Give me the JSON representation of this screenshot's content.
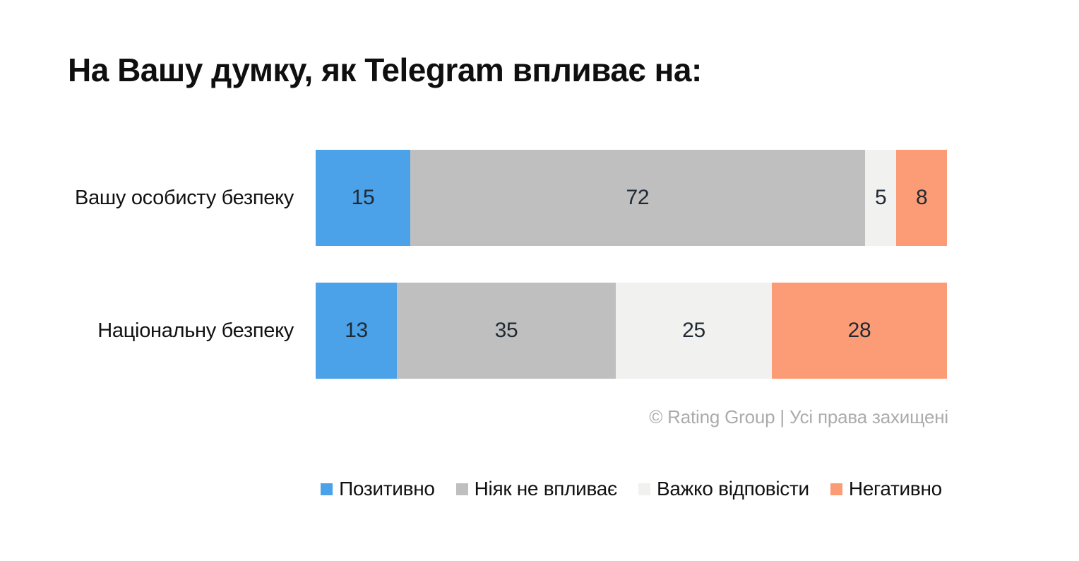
{
  "title": "На Вашу думку, як Telegram впливає на:",
  "attribution": "© Rating Group | Усі права захищені",
  "chart_data": {
    "type": "bar",
    "variant": "horizontal-stacked",
    "stacked": true,
    "orientation": "horizontal",
    "title": "На Вашу думку, як Telegram впливає на:",
    "value_unit": "percent",
    "xlim": [
      0,
      100
    ],
    "grid": false,
    "axes_visible": false,
    "data_labels": "inside-center",
    "legend_position": "bottom-center",
    "categories": [
      "Вашу особисту безпеку",
      "Національну безпеку"
    ],
    "series": [
      {
        "name": "Позитивно",
        "color": "#4ba2e9",
        "values": [
          15,
          13
        ]
      },
      {
        "name": "Ніяк не впливає",
        "color": "#bfbfbf",
        "values": [
          72,
          35
        ]
      },
      {
        "name": "Важко відповісти",
        "color": "#f1f1ef",
        "values": [
          5,
          25
        ]
      },
      {
        "name": "Негативно",
        "color": "#fc9c76",
        "values": [
          8,
          28
        ]
      }
    ]
  },
  "colors": {
    "background": "#ffffff",
    "title_text": "#0f0f0f",
    "category_label_text": "#111111",
    "bar_value_text": "#1f2933",
    "attribution_text": "#ababab",
    "legend_text": "#111111"
  }
}
